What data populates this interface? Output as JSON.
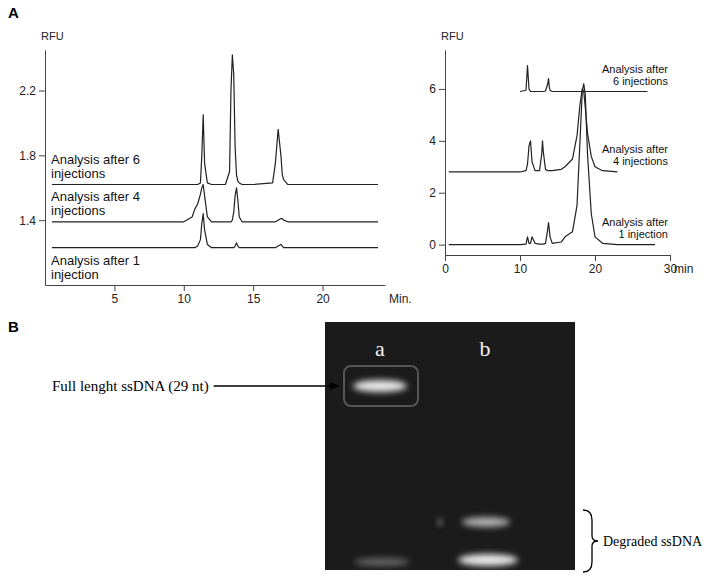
{
  "panels": [
    "A",
    "B"
  ],
  "chart_data": [
    {
      "type": "line",
      "x_label": "Min.",
      "y_label": "RFU",
      "xlim": [
        0,
        24.5
      ],
      "xticks": [
        5,
        10,
        15,
        20
      ],
      "ylim": [
        1.0,
        2.45
      ],
      "yticks": [
        1.4,
        1.8,
        2.2
      ],
      "x": [
        0.5,
        5,
        10,
        10.6,
        10.8,
        11.0,
        11.2,
        11.3,
        11.4,
        11.5,
        11.7,
        12,
        13,
        13.3,
        13.4,
        13.5,
        13.6,
        13.7,
        13.8,
        13.9,
        14.0,
        14.2,
        15,
        16.4,
        16.6,
        16.8,
        17.0,
        17.1,
        17.2,
        17.5,
        20,
        24
      ],
      "series": [
        {
          "name": "Analysis after 6 injections",
          "color": "#222222",
          "values": [
            1.62,
            1.62,
            1.62,
            1.62,
            1.62,
            1.62,
            1.63,
            1.8,
            2.05,
            1.75,
            1.63,
            1.62,
            1.62,
            1.7,
            2.2,
            2.42,
            2.3,
            1.85,
            1.68,
            1.64,
            1.63,
            1.62,
            1.62,
            1.63,
            1.75,
            1.96,
            1.8,
            1.68,
            1.65,
            1.62,
            1.62,
            1.62
          ]
        },
        {
          "name": "Analysis after 4 injections",
          "color": "#222222",
          "values": [
            1.39,
            1.39,
            1.39,
            1.42,
            1.47,
            1.5,
            1.56,
            1.6,
            1.62,
            1.55,
            1.42,
            1.39,
            1.39,
            1.39,
            1.39,
            1.4,
            1.45,
            1.55,
            1.6,
            1.52,
            1.42,
            1.39,
            1.39,
            1.39,
            1.39,
            1.4,
            1.41,
            1.41,
            1.4,
            1.39,
            1.39,
            1.39
          ]
        },
        {
          "name": "Analysis after 1 injection",
          "color": "#222222",
          "values": [
            1.23,
            1.23,
            1.23,
            1.23,
            1.23,
            1.24,
            1.28,
            1.38,
            1.44,
            1.34,
            1.25,
            1.23,
            1.23,
            1.23,
            1.23,
            1.23,
            1.23,
            1.24,
            1.26,
            1.24,
            1.23,
            1.23,
            1.23,
            1.23,
            1.23,
            1.24,
            1.25,
            1.24,
            1.23,
            1.23,
            1.23,
            1.23
          ]
        }
      ]
    },
    {
      "type": "line",
      "x_label": "min",
      "y_label": "RFU",
      "xlim": [
        0,
        30
      ],
      "xticks": [
        0,
        10,
        20,
        30
      ],
      "ylim": [
        -0.4,
        7.5
      ],
      "yticks": [
        0,
        2,
        4,
        6
      ],
      "x": [
        0.5,
        10,
        10.8,
        11.0,
        11.2,
        11.4,
        11.6,
        12.0,
        12.6,
        12.9,
        13.0,
        13.1,
        13.4,
        13.7,
        13.8,
        13.9,
        14.0,
        14.3,
        15.5,
        16.0,
        17.0,
        17.6,
        18.0,
        18.3,
        18.5,
        18.7,
        19.0,
        19.5,
        20.0,
        21,
        23,
        27,
        28
      ],
      "series": [
        {
          "name": "Analysis after 6 injections",
          "color": "#222222",
          "values": [
            null,
            5.9,
            5.95,
            6.9,
            6.0,
            5.9,
            5.9,
            5.9,
            5.9,
            5.9,
            5.9,
            5.9,
            5.92,
            6.2,
            6.4,
            6.1,
            5.95,
            5.9,
            5.9,
            5.9,
            5.9,
            5.9,
            5.9,
            5.9,
            5.9,
            5.9,
            5.9,
            5.9,
            5.9,
            5.9,
            5.9,
            5.9,
            null
          ]
        },
        {
          "name": "Analysis after 4 injections",
          "color": "#222222",
          "values": [
            2.8,
            2.8,
            2.85,
            3.1,
            3.8,
            4.0,
            3.2,
            2.85,
            2.85,
            3.5,
            4.0,
            3.6,
            2.9,
            2.85,
            2.85,
            2.85,
            2.85,
            2.85,
            2.9,
            3.0,
            3.3,
            4.2,
            5.4,
            6.0,
            5.9,
            5.3,
            4.3,
            3.4,
            3.0,
            2.85,
            2.8,
            null,
            null
          ]
        },
        {
          "name": "Analysis after 1 injection",
          "color": "#222222",
          "values": [
            0,
            0,
            0.02,
            0.3,
            0.05,
            0.05,
            0.3,
            0.05,
            0.02,
            0.02,
            0.02,
            0.02,
            0.05,
            0.6,
            0.85,
            0.6,
            0.3,
            0.05,
            0.1,
            0.3,
            0.5,
            1.5,
            4.0,
            5.9,
            6.2,
            5.8,
            3.5,
            1.2,
            0.3,
            0.05,
            0,
            0,
            0
          ]
        }
      ]
    }
  ],
  "gel": {
    "lanes": [
      "a",
      "b"
    ],
    "band_label": "Full lenght ssDNA (29 nt)",
    "bracket_label": "Degraded ssDNA"
  }
}
